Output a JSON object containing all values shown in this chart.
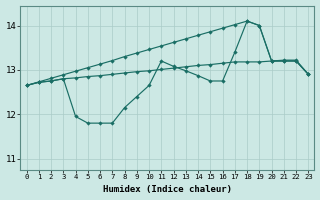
{
  "background_color": "#cce8e4",
  "grid_color": "#aaccc8",
  "line_color": "#1a6e65",
  "xlabel": "Humidex (Indice chaleur)",
  "ylim": [
    10.75,
    14.45
  ],
  "yticks": [
    11,
    12,
    13,
    14
  ],
  "x_ticks": [
    0,
    1,
    2,
    3,
    4,
    5,
    6,
    7,
    8,
    9,
    10,
    11,
    12,
    13,
    14,
    15,
    16,
    17,
    18,
    19,
    20,
    21,
    22,
    23
  ],
  "line_top": [
    12.65,
    12.73,
    12.81,
    12.89,
    12.97,
    13.05,
    13.13,
    13.21,
    13.3,
    13.38,
    13.46,
    13.54,
    13.62,
    13.7,
    13.78,
    13.86,
    13.94,
    14.02,
    14.1,
    14.0,
    13.2,
    13.2,
    13.2,
    12.9
  ],
  "line_mid": [
    12.65,
    12.72,
    12.75,
    12.8,
    12.82,
    12.85,
    12.87,
    12.9,
    12.93,
    12.96,
    12.98,
    13.01,
    13.04,
    13.07,
    13.1,
    13.12,
    13.15,
    13.18,
    13.18,
    13.18,
    13.2,
    13.22,
    13.22,
    12.9
  ],
  "line_bot": [
    12.65,
    12.72,
    12.75,
    12.8,
    11.95,
    11.8,
    11.8,
    11.8,
    12.15,
    12.4,
    12.65,
    13.2,
    13.08,
    12.98,
    12.87,
    12.75,
    12.75,
    13.4,
    14.1,
    14.0,
    13.2,
    13.2,
    13.2,
    12.9
  ]
}
